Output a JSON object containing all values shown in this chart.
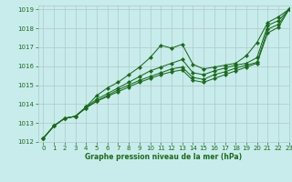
{
  "title": "Graphe pression niveau de la mer (hPa)",
  "bg_color": "#c8ecec",
  "grid_color": "#b0c8c8",
  "line_color": "#1a6b1a",
  "xlim": [
    -0.5,
    23
  ],
  "ylim": [
    1012,
    1019.2
  ],
  "xticks": [
    0,
    1,
    2,
    3,
    4,
    5,
    6,
    7,
    8,
    9,
    10,
    11,
    12,
    13,
    14,
    15,
    16,
    17,
    18,
    19,
    20,
    21,
    22,
    23
  ],
  "yticks": [
    1012,
    1013,
    1014,
    1015,
    1016,
    1017,
    1018,
    1019
  ],
  "series": [
    [
      1012.2,
      1012.85,
      1013.25,
      1013.35,
      1013.85,
      1014.45,
      1014.85,
      1015.15,
      1015.55,
      1015.95,
      1016.45,
      1017.1,
      1016.95,
      1017.15,
      1016.1,
      1015.85,
      1015.95,
      1016.05,
      1016.15,
      1016.55,
      1017.25,
      1018.3,
      1018.6,
      1019.0
    ],
    [
      1012.2,
      1012.85,
      1013.25,
      1013.35,
      1013.85,
      1014.25,
      1014.55,
      1014.85,
      1015.15,
      1015.45,
      1015.75,
      1015.95,
      1016.15,
      1016.35,
      1015.65,
      1015.55,
      1015.75,
      1015.9,
      1016.05,
      1016.15,
      1016.45,
      1018.15,
      1018.4,
      1019.0
    ],
    [
      1012.2,
      1012.85,
      1013.25,
      1013.35,
      1013.8,
      1014.15,
      1014.45,
      1014.75,
      1015.0,
      1015.25,
      1015.45,
      1015.65,
      1015.85,
      1015.95,
      1015.4,
      1015.3,
      1015.55,
      1015.7,
      1015.9,
      1016.05,
      1016.2,
      1017.95,
      1018.2,
      1019.0
    ],
    [
      1012.2,
      1012.85,
      1013.25,
      1013.35,
      1013.8,
      1014.15,
      1014.4,
      1014.65,
      1014.9,
      1015.15,
      1015.35,
      1015.55,
      1015.7,
      1015.8,
      1015.25,
      1015.15,
      1015.35,
      1015.55,
      1015.75,
      1015.95,
      1016.15,
      1017.75,
      1018.05,
      1019.0
    ]
  ]
}
